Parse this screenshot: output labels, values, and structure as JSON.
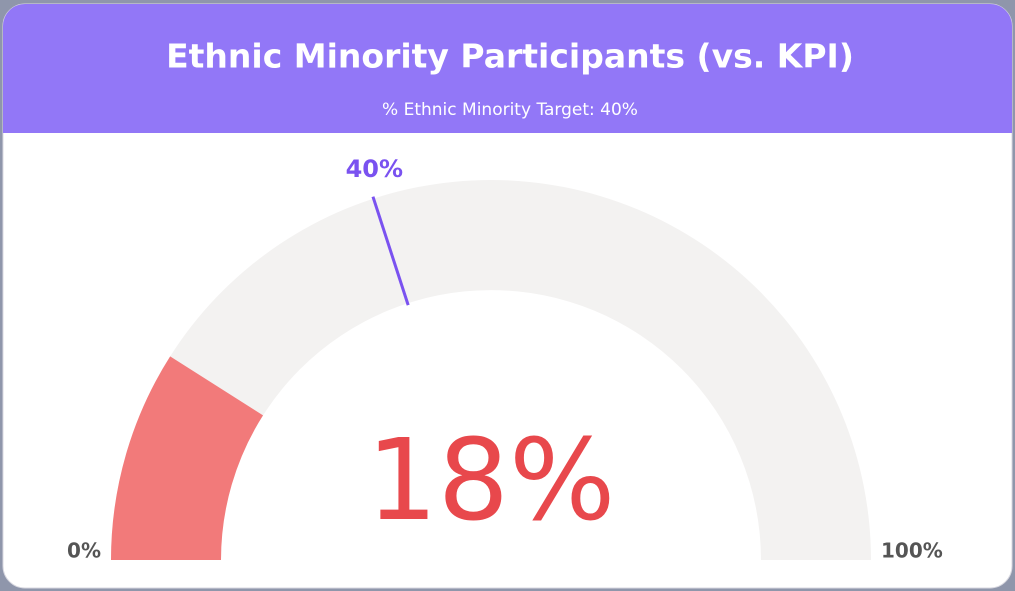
{
  "chart_data": {
    "type": "gauge",
    "title": "Ethnic Minority Participants (vs. KPI)",
    "subtitle": "% Ethnic Minority Target: 40%",
    "values": [
      18
    ],
    "value_labels": [
      "18%"
    ],
    "color": "#f27a7a",
    "value_label_color": "#e8484c",
    "target": {
      "value": 40,
      "label": "40%"
    },
    "target_color": "#7a52f0",
    "track_color": "#f3f2f1",
    "ylim": [
      0,
      100
    ],
    "yticks": [
      {
        "value": 0,
        "label": "0%"
      },
      {
        "value": 100,
        "label": "100%"
      }
    ]
  }
}
